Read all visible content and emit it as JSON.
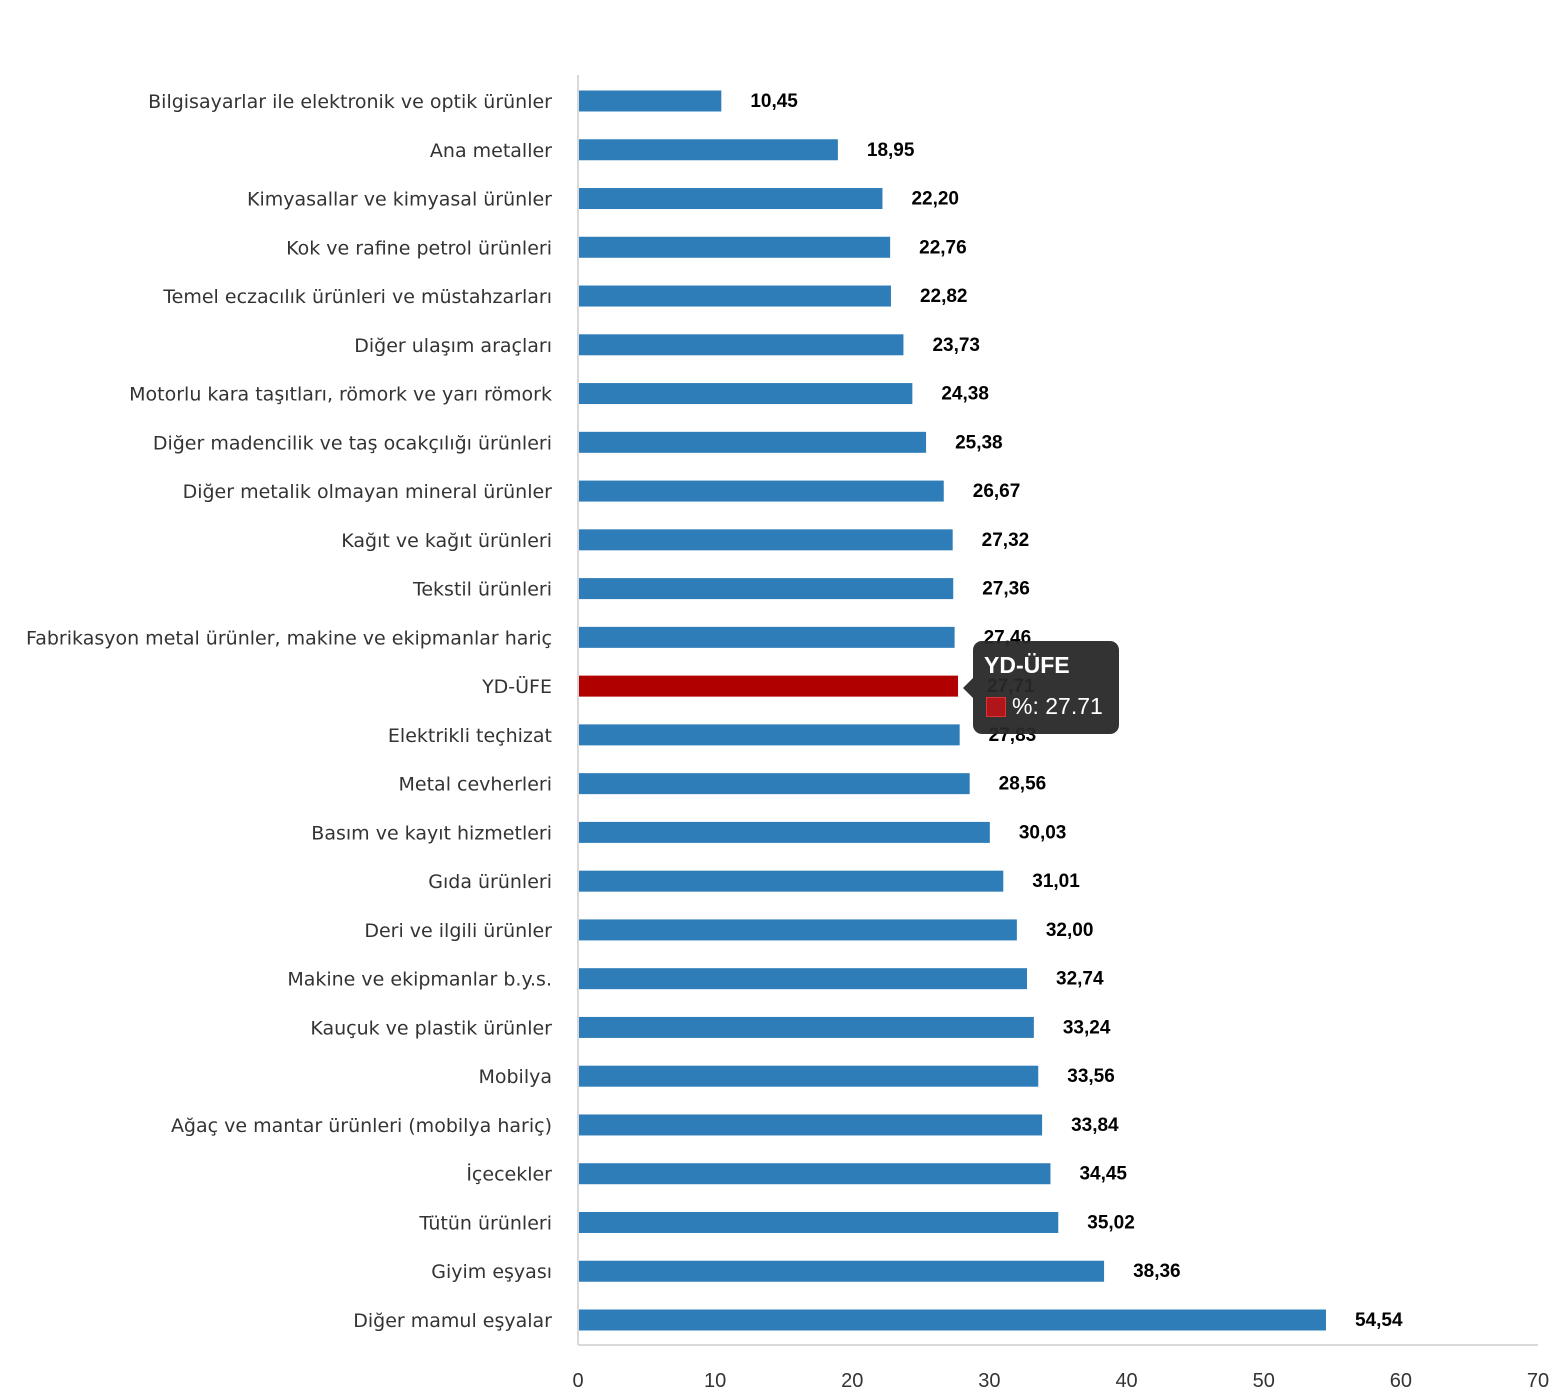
{
  "chart_data": {
    "type": "bar",
    "orientation": "horizontal",
    "categories": [
      "Bilgisayarlar ile elektronik ve optik ürünler",
      "Ana metaller",
      "Kimyasallar ve kimyasal ürünler",
      "Kok ve rafine petrol ürünleri",
      "Temel eczacılık ürünleri ve müstahzarları",
      "Diğer ulaşım araçları",
      "Motorlu kara taşıtları, römork ve yarı römork",
      "Diğer madencilik ve taş ocakçılığı ürünleri",
      "Diğer metalik olmayan mineral ürünler",
      "Kağıt ve kağıt ürünleri",
      "Tekstil ürünleri",
      "Fabrikasyon metal ürünler, makine ve ekipmanlar hariç",
      "YD-ÜFE",
      "Elektrikli teçhizat",
      "Metal cevherleri",
      "Basım ve kayıt hizmetleri",
      "Gıda ürünleri",
      "Deri ve ilgili ürünler",
      "Makine ve ekipmanlar b.y.s.",
      "Kauçuk ve plastik ürünler",
      "Mobilya",
      "Ağaç ve mantar ürünleri (mobilya hariç)",
      "İçecekler",
      "Tütün ürünleri",
      "Giyim eşyası",
      "Diğer mamul eşyalar"
    ],
    "values": [
      10.45,
      18.95,
      22.2,
      22.76,
      22.82,
      23.73,
      24.38,
      25.38,
      26.67,
      27.32,
      27.36,
      27.46,
      27.71,
      27.83,
      28.56,
      30.03,
      31.01,
      32.0,
      32.74,
      33.24,
      33.56,
      33.84,
      34.45,
      35.02,
      38.36,
      54.54
    ],
    "value_labels": [
      "10,45",
      "18,95",
      "22,20",
      "22,76",
      "22,82",
      "23,73",
      "24,38",
      "25,38",
      "26,67",
      "27,32",
      "27,36",
      "27,46",
      "27,71",
      "27,83",
      "28,56",
      "30,03",
      "31,01",
      "32,00",
      "32,74",
      "33,24",
      "33,56",
      "33,84",
      "34,45",
      "35,02",
      "38,36",
      "54,54"
    ],
    "highlight_category": "YD-ÜFE",
    "xlim": [
      0,
      70
    ],
    "xticks": [
      "0",
      "10",
      "20",
      "30",
      "40",
      "50",
      "60",
      "70"
    ],
    "xtick_values": [
      0,
      10,
      20,
      30,
      40,
      50,
      60,
      70
    ],
    "title": "",
    "xlabel": "",
    "ylabel": "",
    "grid": false,
    "colors": {
      "bar": "#2f7db8",
      "highlight": "#b00000",
      "axis": "#d9d9d9"
    }
  },
  "tooltip": {
    "title": "YD-ÜFE",
    "series_label": "%: 27.71",
    "color": "#b0151a"
  }
}
